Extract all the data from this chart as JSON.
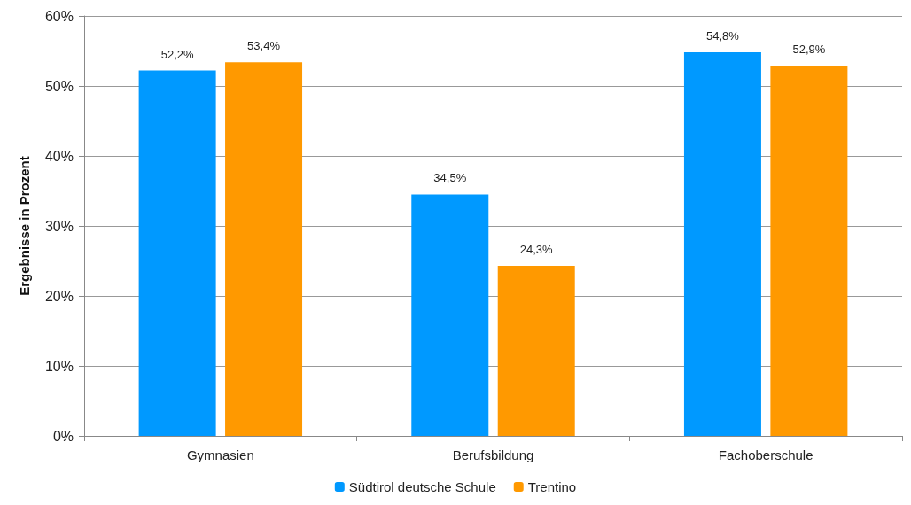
{
  "chart_data": {
    "type": "bar",
    "ylabel": "Ergebnisse in Prozent",
    "categories": [
      "Gymnasien",
      "Berufsbildung",
      "Fachoberschule"
    ],
    "series": [
      {
        "name": "Südtirol deutsche Schule",
        "color": "#0099ff",
        "values": [
          52.2,
          34.5,
          54.8
        ],
        "value_labels": [
          "52,2%",
          "34,5%",
          "54,8%"
        ]
      },
      {
        "name": "Trentino",
        "color": "#ff9900",
        "values": [
          53.4,
          24.3,
          52.9
        ],
        "value_labels": [
          "53,4%",
          "24,3%",
          "52,9%"
        ]
      }
    ],
    "ylim": [
      0,
      60
    ],
    "yticks": [
      {
        "value": 0,
        "label": "0%"
      },
      {
        "value": 10,
        "label": "10%"
      },
      {
        "value": 20,
        "label": "20%"
      },
      {
        "value": 30,
        "label": "30%"
      },
      {
        "value": 40,
        "label": "40%"
      },
      {
        "value": 50,
        "label": "50%"
      },
      {
        "value": 60,
        "label": "60%"
      }
    ],
    "grid": "y",
    "legend": "bottom"
  }
}
